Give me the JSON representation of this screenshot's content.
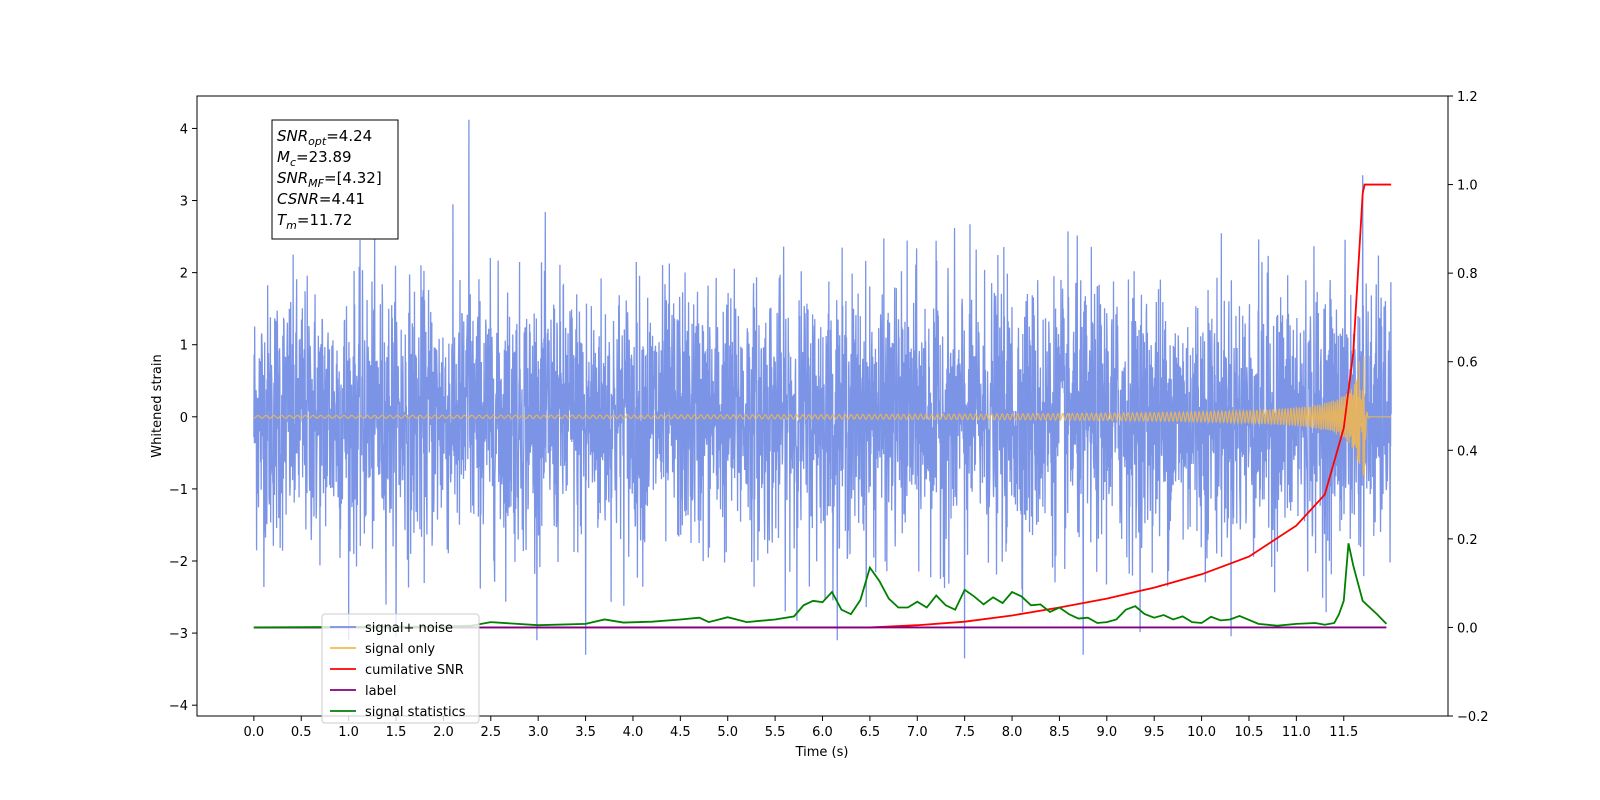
{
  "chart_data": {
    "type": "line",
    "xlabel": "Time (s)",
    "ylabel": "Whitened strain",
    "xlim": [
      -0.6,
      12.6
    ],
    "ylim": [
      -4.15,
      4.45
    ],
    "y2lim": [
      -0.2,
      1.2
    ],
    "x_ticks": [
      "0.0",
      "0.5",
      "1.0",
      "1.5",
      "2.0",
      "2.5",
      "3.0",
      "3.5",
      "4.0",
      "4.5",
      "5.0",
      "5.5",
      "6.0",
      "6.5",
      "7.0",
      "7.5",
      "8.0",
      "8.5",
      "9.0",
      "9.5",
      "10.0",
      "10.5",
      "11.0",
      "11.5"
    ],
    "y_ticks": [
      "4",
      "3",
      "2",
      "1",
      "0",
      "−1",
      "−2",
      "−3",
      "−4"
    ],
    "y2_ticks": [
      "1.2",
      "1.0",
      "0.8",
      "0.6",
      "0.4",
      "0.2",
      "0.0",
      "−0.2"
    ],
    "grid": false,
    "legend_position": "lower-left",
    "annotation": {
      "lines": [
        {
          "sym": "SNR",
          "sub": "opt",
          "value": "=4.24"
        },
        {
          "sym": "M",
          "sub": "c",
          "value": "=23.89"
        },
        {
          "sym": "SNR",
          "sub": "MF",
          "value": "=[4.32]"
        },
        {
          "sym": "CSNR",
          "sub": "",
          "value": "=4.41"
        },
        {
          "sym": "T",
          "sub": "m",
          "value": "=11.72"
        }
      ]
    },
    "series": [
      {
        "name": "signal+ noise",
        "color": "#7892e6",
        "axis": "left",
        "x_range": [
          0.0,
          12.0
        ],
        "amplitude_sigma": 0.9,
        "peaks": [
          [
            2.27,
            4.12
          ],
          [
            11.7,
            3.35
          ],
          [
            7.5,
            -3.35
          ],
          [
            3.5,
            -3.3
          ],
          [
            8.75,
            -3.3
          ]
        ]
      },
      {
        "name": "signal only",
        "color": "#f5b84d",
        "axis": "left",
        "x_range": [
          0.0,
          12.0
        ],
        "merger_time": 11.72,
        "peak_amplitude": 0.85
      },
      {
        "name": "cumilative SNR",
        "color": "#ff0000",
        "axis": "right",
        "x": [
          0.0,
          6.5,
          7.0,
          7.5,
          8.0,
          8.5,
          9.0,
          9.5,
          10.0,
          10.5,
          11.0,
          11.3,
          11.5,
          11.6,
          11.65,
          11.7,
          11.72,
          12.0
        ],
        "y": [
          0.0,
          0.0,
          0.005,
          0.013,
          0.027,
          0.045,
          0.065,
          0.09,
          0.12,
          0.16,
          0.23,
          0.3,
          0.45,
          0.62,
          0.8,
          0.98,
          1.0,
          1.0
        ]
      },
      {
        "name": "label",
        "color": "#800080",
        "axis": "right",
        "x": [
          0.0,
          11.95
        ],
        "y": [
          0.0,
          0.0
        ]
      },
      {
        "name": "signal statistics",
        "color": "#008000",
        "axis": "right",
        "x": [
          0.0,
          2.0,
          2.3,
          2.5,
          3.0,
          3.5,
          3.7,
          3.9,
          4.2,
          4.5,
          4.7,
          4.8,
          5.0,
          5.2,
          5.5,
          5.7,
          5.8,
          5.9,
          6.0,
          6.1,
          6.2,
          6.3,
          6.4,
          6.5,
          6.6,
          6.7,
          6.8,
          6.9,
          7.0,
          7.1,
          7.2,
          7.3,
          7.4,
          7.5,
          7.6,
          7.7,
          7.8,
          7.9,
          8.0,
          8.1,
          8.2,
          8.3,
          8.4,
          8.5,
          8.6,
          8.7,
          8.8,
          8.9,
          9.0,
          9.1,
          9.2,
          9.3,
          9.4,
          9.5,
          9.6,
          9.7,
          9.8,
          9.9,
          10.0,
          10.1,
          10.2,
          10.3,
          10.4,
          10.6,
          10.8,
          11.0,
          11.2,
          11.3,
          11.4,
          11.45,
          11.5,
          11.55,
          11.6,
          11.7,
          11.85,
          11.95
        ],
        "y": [
          0.0,
          0.002,
          0.004,
          0.012,
          0.005,
          0.008,
          0.018,
          0.011,
          0.013,
          0.018,
          0.022,
          0.012,
          0.023,
          0.012,
          0.018,
          0.025,
          0.05,
          0.06,
          0.057,
          0.08,
          0.04,
          0.03,
          0.062,
          0.135,
          0.105,
          0.065,
          0.045,
          0.045,
          0.058,
          0.045,
          0.072,
          0.05,
          0.04,
          0.085,
          0.07,
          0.052,
          0.068,
          0.055,
          0.08,
          0.07,
          0.05,
          0.052,
          0.035,
          0.045,
          0.03,
          0.02,
          0.022,
          0.01,
          0.012,
          0.018,
          0.04,
          0.048,
          0.03,
          0.022,
          0.028,
          0.018,
          0.025,
          0.012,
          0.01,
          0.024,
          0.016,
          0.018,
          0.026,
          0.008,
          0.004,
          0.008,
          0.01,
          0.006,
          0.01,
          0.03,
          0.06,
          0.19,
          0.14,
          0.06,
          0.03,
          0.008
        ]
      }
    ]
  }
}
